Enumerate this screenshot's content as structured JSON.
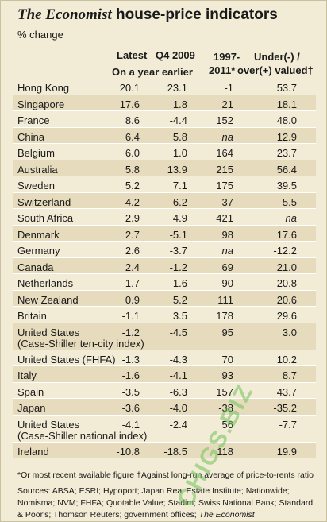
{
  "title": {
    "brand": "The Economist",
    "rest": " house-price indicators"
  },
  "subtitle": "% change",
  "headers": {
    "latest": "Latest",
    "q4": "Q4 2009",
    "on_year": "On a year earlier",
    "since_1": "1997-",
    "since_2": "2011*",
    "valued_1": "Under(-) /",
    "valued_2": "over(+) valued†"
  },
  "chart_data": {
    "type": "table",
    "title": "The Economist house-price indicators",
    "subtitle": "% change",
    "columns": [
      "Latest (On a year earlier)",
      "Q4 2009 (On a year earlier)",
      "1997-2011*",
      "Under(-) / over(+) valued†"
    ],
    "rows": [
      {
        "country": "Hong Kong",
        "sub": "",
        "latest": "20.1",
        "q4": "23.1",
        "since": "-1",
        "valued": "53.7"
      },
      {
        "country": "Singapore",
        "sub": "",
        "latest": "17.6",
        "q4": "1.8",
        "since": "21",
        "valued": "18.1"
      },
      {
        "country": "France",
        "sub": "",
        "latest": "8.6",
        "q4": "-4.4",
        "since": "152",
        "valued": "48.0"
      },
      {
        "country": "China",
        "sub": "",
        "latest": "6.4",
        "q4": "5.8",
        "since": "na",
        "valued": "12.9"
      },
      {
        "country": "Belgium",
        "sub": "",
        "latest": "6.0",
        "q4": "1.0",
        "since": "164",
        "valued": "23.7"
      },
      {
        "country": "Australia",
        "sub": "",
        "latest": "5.8",
        "q4": "13.9",
        "since": "215",
        "valued": "56.4"
      },
      {
        "country": "Sweden",
        "sub": "",
        "latest": "5.2",
        "q4": "7.1",
        "since": "175",
        "valued": "39.5"
      },
      {
        "country": "Switzerland",
        "sub": "",
        "latest": "4.2",
        "q4": "6.2",
        "since": "37",
        "valued": "5.5"
      },
      {
        "country": "South Africa",
        "sub": "",
        "latest": "2.9",
        "q4": "4.9",
        "since": "421",
        "valued": "na"
      },
      {
        "country": "Denmark",
        "sub": "",
        "latest": "2.7",
        "q4": "-5.1",
        "since": "98",
        "valued": "17.6"
      },
      {
        "country": "Germany",
        "sub": "",
        "latest": "2.6",
        "q4": "-3.7",
        "since": "na",
        "valued": "-12.2"
      },
      {
        "country": "Canada",
        "sub": "",
        "latest": "2.4",
        "q4": "-1.2",
        "since": "69",
        "valued": "21.0"
      },
      {
        "country": "Netherlands",
        "sub": "",
        "latest": "1.7",
        "q4": "-1.6",
        "since": "90",
        "valued": "20.8"
      },
      {
        "country": "New Zealand",
        "sub": "",
        "latest": "0.9",
        "q4": "5.2",
        "since": "111",
        "valued": "20.6"
      },
      {
        "country": "Britain",
        "sub": "",
        "latest": "-1.1",
        "q4": "3.5",
        "since": "178",
        "valued": "29.6"
      },
      {
        "country": "United States",
        "sub": "(Case-Shiller ten-city index)",
        "latest": "-1.2",
        "q4": "-4.5",
        "since": "95",
        "valued": "3.0"
      },
      {
        "country": "United States (FHFA)",
        "sub": "",
        "latest": "-1.3",
        "q4": "-4.3",
        "since": "70",
        "valued": "10.2"
      },
      {
        "country": "Italy",
        "sub": "",
        "latest": "-1.6",
        "q4": "-4.1",
        "since": "93",
        "valued": "8.7"
      },
      {
        "country": "Spain",
        "sub": "",
        "latest": "-3.5",
        "q4": "-6.3",
        "since": "157",
        "valued": "43.7"
      },
      {
        "country": "Japan",
        "sub": "",
        "latest": "-3.6",
        "q4": "-4.0",
        "since": "-38",
        "valued": "-35.2"
      },
      {
        "country": "United States",
        "sub": "(Case-Shiller national index)",
        "latest": "-4.1",
        "q4": "-2.4",
        "since": "56",
        "valued": "-7.7"
      },
      {
        "country": "Ireland",
        "sub": "",
        "latest": "-10.8",
        "q4": "-18.5",
        "since": "118",
        "valued": "19.9"
      }
    ]
  },
  "footnote": "*Or most recent available figure    †Against long-run average of price-to-rents ratio",
  "sources": {
    "text": "Sources: ABSA; ESRI; Hypoport; Japan Real Estate Institute; Nationwide; Nomisma; NVM; FHFA; Quotable Value; Stadim; Swiss National Bank; Standard & Poor's; Thomson Reuters; government offices; ",
    "brand": "The Economist"
  },
  "watermark": "CHIGS.BIZ",
  "colors": {
    "background": "#f2ecd6",
    "stripe": "#e6dcbd",
    "watermark_green": "#6dc35a",
    "watermark_red": "#e0483a"
  }
}
